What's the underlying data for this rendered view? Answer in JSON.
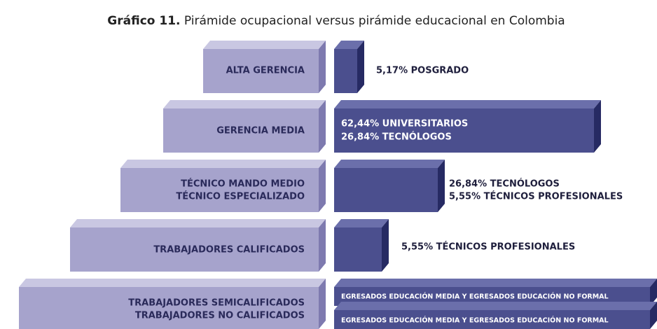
{
  "title": {
    "label": "Gráfico 11.",
    "text": "Pirámide ocupacional versus pirámide educacional en Colombia"
  },
  "rows": [
    {
      "occupation": [
        "ALTA GERENCIA"
      ],
      "education": [
        "5,17% POSGRADO"
      ]
    },
    {
      "occupation": [
        "GERENCIA MEDIA"
      ],
      "education": [
        "62,44% UNIVERSITARIOS",
        "26,84% TECNÓLOGOS"
      ]
    },
    {
      "occupation": [
        "TÉCNICO MANDO MEDIO",
        "TÉCNICO ESPECIALIZADO"
      ],
      "education": [
        "26,84% TECNÓLOGOS",
        "5,55% TÉCNICOS PROFESIONALES"
      ]
    },
    {
      "occupation": [
        "TRABAJADORES CALIFICADOS"
      ],
      "education": [
        "5,55% TÉCNICOS PROFESIONALES"
      ]
    },
    {
      "occupation": [
        "TRABAJADORES SEMICALIFICADOS",
        "TRABAJADORES NO CALIFICADOS"
      ],
      "education": [
        "EGRESADOS EDUCACIÓN MEDIA Y EGRESADOS EDUCACIÓN NO FORMAL",
        "EGRESADOS EDUCACIÓN MEDIA Y EGRESADOS EDUCACIÓN NO FORMAL"
      ]
    }
  ]
}
